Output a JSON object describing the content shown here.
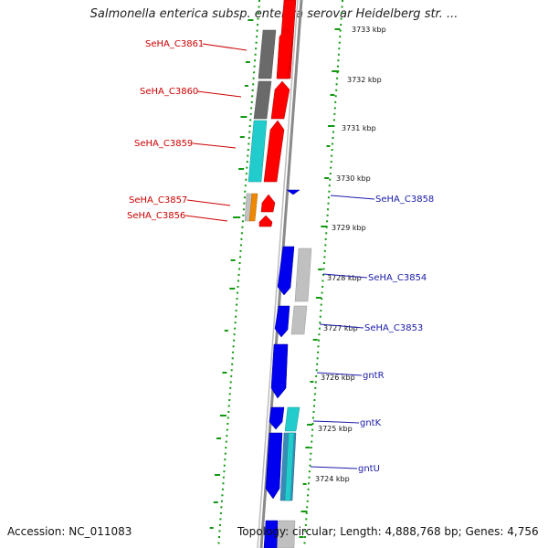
{
  "title": "Salmonella enterica subsp. enterica serovar Heidelberg str. ...",
  "footer": {
    "accession": "Accession: NC_011083",
    "topology": "Topology: circular; Length: 4,888,768 bp; Genes: 4,756"
  },
  "colors": {
    "forward_cds": "#ff0000",
    "reverse_cds": "#0000ee",
    "label_forward": "#cc0000",
    "label_reverse": "#1a1aaa",
    "gc_skew_dots": "#119911",
    "backbone": "#808080",
    "cog_dark": "#6a6a6a",
    "cog_cyan": "#22cccc",
    "cog_light": "#c0c0c0",
    "cog_orange": "#ee8800"
  },
  "ticks": [
    "3733 kbp",
    "3732 kbp",
    "3731 kbp",
    "3730 kbp",
    "3729 kbp",
    "3728 kbp",
    "3727 kbp",
    "3726 kbp",
    "3725 kbp",
    "3724 kbp"
  ],
  "forward_labels": [
    "SeHA_C3861",
    "SeHA_C3860",
    "SeHA_C3859",
    "SeHA_C3857",
    "SeHA_C3856"
  ],
  "reverse_labels": [
    "SeHA_C3858",
    "SeHA_C3854",
    "SeHA_C3853",
    "gntR",
    "gntK",
    "gntU"
  ]
}
